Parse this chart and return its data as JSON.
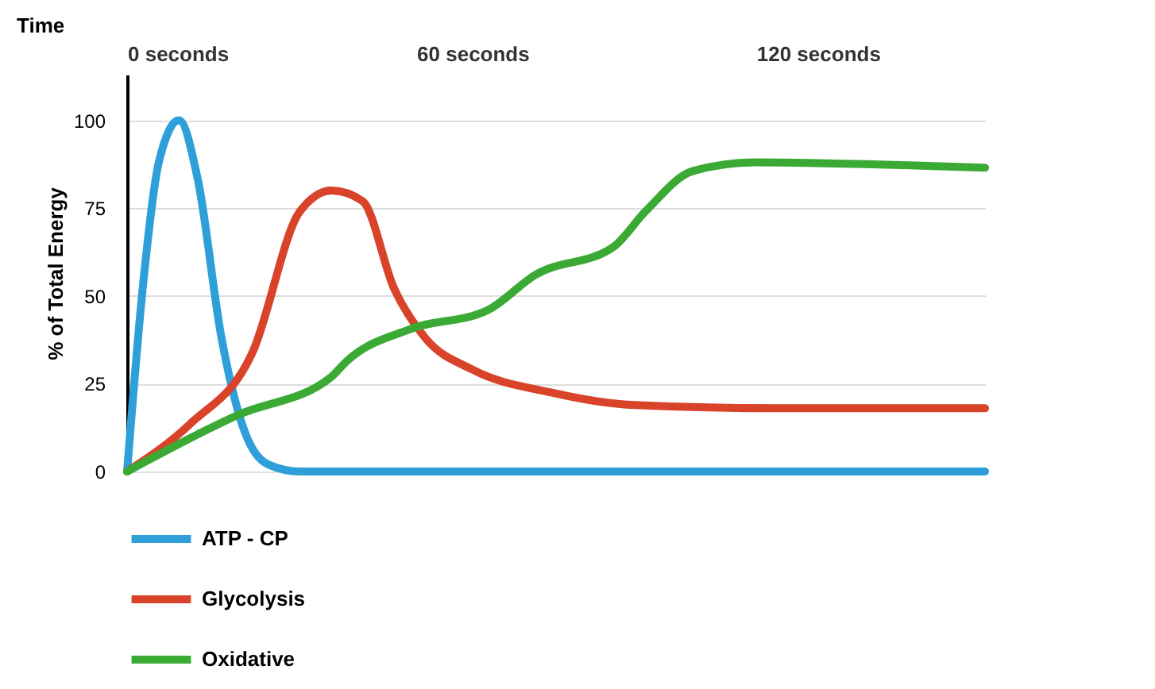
{
  "chart_data": {
    "type": "line",
    "xlabel": "Time",
    "ylabel": "% of Total Energy",
    "xlim": [
      0,
      149
    ],
    "ylim": [
      0,
      113
    ],
    "xticks": [
      {
        "value": 0,
        "label": "0 seconds"
      },
      {
        "value": 60,
        "label": "60 seconds"
      },
      {
        "value": 120,
        "label": "120 seconds"
      }
    ],
    "yticks": [
      0,
      25,
      50,
      75,
      100
    ],
    "grid": "y",
    "legend": "bottom",
    "line_style": "solid",
    "marker": "none",
    "series": [
      {
        "name": "ATP - CP",
        "color": "#2e9fd8",
        "x": [
          0,
          2.7,
          5.5,
          9,
          12.3,
          16.4,
          20.5,
          24.5,
          30,
          149
        ],
        "values": [
          0,
          52,
          88,
          100,
          83,
          38,
          11,
          2,
          0,
          0
        ]
      },
      {
        "name": "Glycolysis",
        "color": "#d9432a",
        "x": [
          0,
          10.9,
          21.8,
          30,
          35.5,
          40.9,
          46.4,
          51.8,
          60,
          73.6,
          87.3,
          114.5,
          149
        ],
        "values": [
          0,
          13.5,
          34,
          74,
          80,
          77,
          52,
          38,
          29,
          22.5,
          19,
          18,
          18
        ]
      },
      {
        "name": "Oxidative",
        "color": "#3aaa35",
        "x": [
          0,
          19.1,
          35.5,
          38.2,
          49.1,
          62.7,
          70.9,
          84.5,
          90,
          98.2,
          109,
          149
        ],
        "values": [
          0,
          16,
          27,
          31.5,
          40.5,
          46,
          56,
          64,
          74,
          85.5,
          88,
          86.5
        ]
      }
    ]
  }
}
